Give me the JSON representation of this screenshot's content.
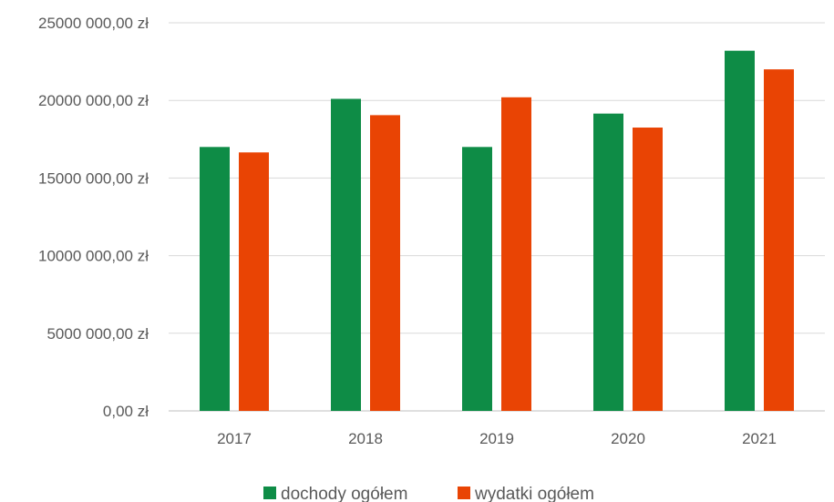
{
  "chart_data": {
    "type": "bar",
    "categories": [
      "2017",
      "2018",
      "2019",
      "2020",
      "2021"
    ],
    "series": [
      {
        "name": "dochody ogółem",
        "color": "#0E8C46",
        "values": [
          17000000,
          20100000,
          17000000,
          19150000,
          23200000
        ]
      },
      {
        "name": "wydatki ogółem",
        "color": "#E94404",
        "values": [
          16650000,
          19050000,
          20200000,
          18250000,
          22000000
        ]
      }
    ],
    "ylim": [
      0,
      25000000
    ],
    "yticks": [
      0,
      5000000,
      10000000,
      15000000,
      20000000,
      25000000
    ],
    "ytick_labels": [
      "0,00 zł",
      "5000 000,00 zł",
      "10000 000,00 zł",
      "15000 000,00 zł",
      "20000 000,00 zł",
      "25000 000,00 zł"
    ],
    "grid": "horizontal",
    "legend_position": "bottom"
  }
}
